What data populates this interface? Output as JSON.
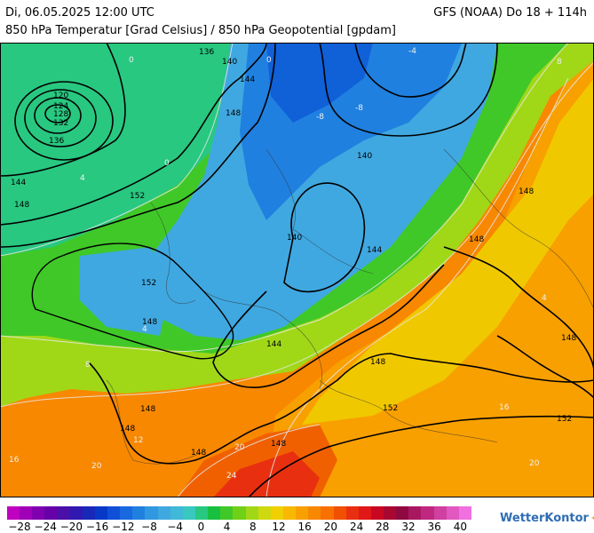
{
  "header": {
    "date_line": "Di, 06.05.2025 12:00 UTC",
    "parameter_line": "850 hPa Temperatur [Grad Celsius] / 850 hPa Geopotential [gpdam]",
    "model_line": "GFS (NOAA) Do 18 + 114h"
  },
  "map": {
    "geopotential_labels": [
      "136",
      "140",
      "144",
      "148",
      "120",
      "124",
      "128",
      "132",
      "136",
      "144",
      "148",
      "152",
      "152",
      "140",
      "144",
      "148",
      "140",
      "144",
      "148",
      "148",
      "152",
      "148",
      "152",
      "148",
      "148",
      "148",
      "148",
      "148",
      "148",
      "148"
    ],
    "temperature_labels": [
      "-4",
      "-8",
      "-8",
      "0",
      "4",
      "0",
      "4",
      "8",
      "12",
      "16",
      "20",
      "20",
      "24",
      "16",
      "20",
      "8",
      "4",
      "0"
    ]
  },
  "legend": {
    "tick_labels": [
      "−28",
      "−24",
      "−20",
      "−16",
      "−12",
      "−8",
      "−4",
      "0",
      "4",
      "8",
      "12",
      "16",
      "20",
      "24",
      "28",
      "32",
      "36",
      "40"
    ],
    "colors": [
      "#c000c0",
      "#a000b8",
      "#8000b0",
      "#6600a8",
      "#4a10a8",
      "#3018b0",
      "#1828b8",
      "#0838c8",
      "#1050d8",
      "#1868e0",
      "#2080e0",
      "#3098e0",
      "#40a8e0",
      "#40b8d8",
      "#38c8c0",
      "#28c880",
      "#18c040",
      "#40c828",
      "#70d018",
      "#a0d818",
      "#d0d810",
      "#f0d000",
      "#f8b800",
      "#f8a000",
      "#f88800",
      "#f87000",
      "#f05000",
      "#e83010",
      "#e01818",
      "#c80820",
      "#a80830",
      "#900840",
      "#a81860",
      "#c02880",
      "#d040a0",
      "#e058c0",
      "#f070e0"
    ]
  },
  "branding": {
    "name": "WetterKontor",
    "icon": "star-icon"
  }
}
